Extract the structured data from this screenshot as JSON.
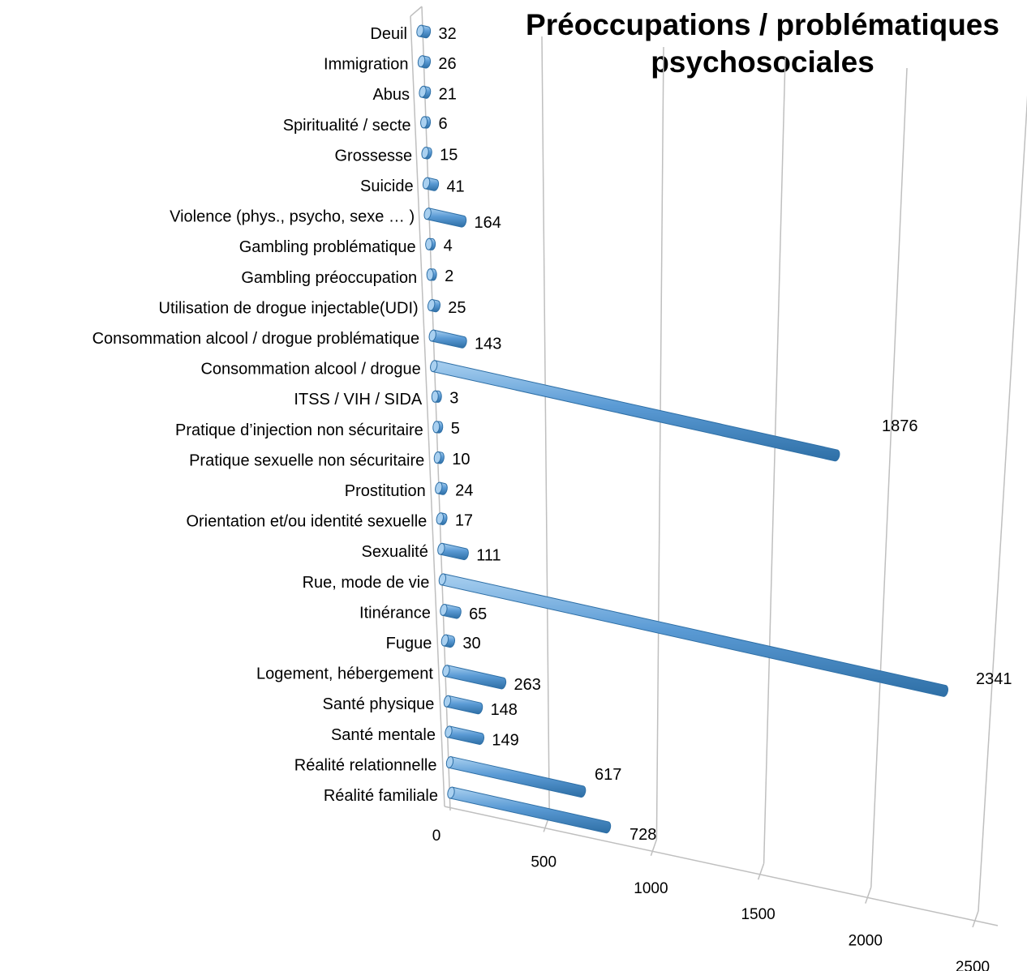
{
  "chart_data": {
    "type": "bar",
    "orientation": "horizontal",
    "style": "3d-cylinder",
    "title_lines": [
      "Préoccupations / problématiques",
      "psychosociales"
    ],
    "categories": [
      "Deuil",
      "Immigration",
      "Abus",
      "Spiritualité / secte",
      "Grossesse",
      "Suicide",
      "Violence (phys., psycho, sexe … )",
      "Gambling problématique",
      "Gambling préoccupation",
      "Utilisation de drogue injectable(UDI)",
      "Consommation alcool / drogue problématique",
      "Consommation alcool / drogue",
      "ITSS / VIH / SIDA",
      "Pratique d’injection non sécuritaire",
      "Pratique sexuelle non sécuritaire",
      "Prostitution",
      "Orientation et/ou identité sexuelle",
      "Sexualité",
      "Rue, mode de vie",
      "Itinérance",
      "Fugue",
      "Logement, hébergement",
      "Santé physique",
      "Santé mentale",
      "Réalité relationnelle",
      "Réalité familiale"
    ],
    "values": [
      32,
      26,
      21,
      6,
      15,
      41,
      164,
      4,
      2,
      25,
      143,
      1876,
      3,
      5,
      10,
      24,
      17,
      111,
      2341,
      65,
      30,
      263,
      148,
      149,
      617,
      728
    ],
    "x_ticks": [
      0,
      500,
      1000,
      1500,
      2000,
      2500
    ],
    "xlim": [
      0,
      2500
    ],
    "grid": true,
    "legend": "none",
    "colors": {
      "bar": "#5B9BD5",
      "bar_dark": "#2E6FA6",
      "bar_light": "#A9D0F0",
      "grid": "#BFBFBF"
    }
  }
}
